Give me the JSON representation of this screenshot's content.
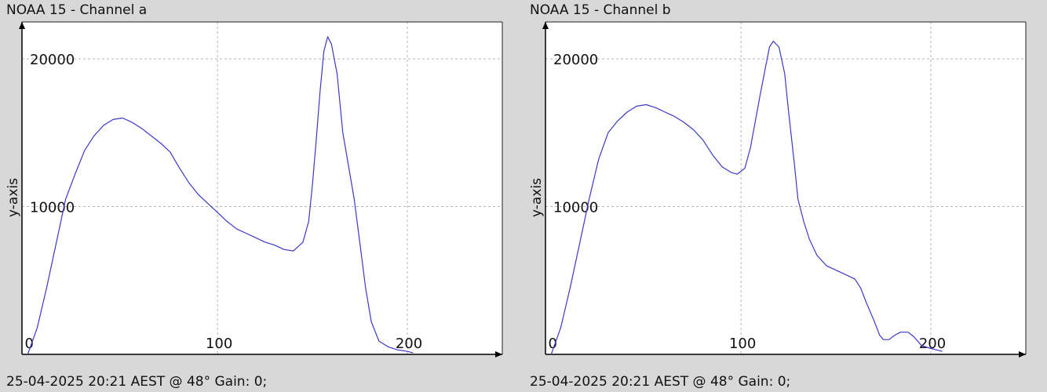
{
  "chart_data": [
    {
      "type": "line",
      "title": "NOAA 15 - Channel a",
      "footer": "25-04-2025 20:21 AEST @ 48° Gain: 0;",
      "xlabel": "",
      "ylabel": "y-axis",
      "xlim": [
        -3,
        250
      ],
      "ylim": [
        0,
        22500
      ],
      "x_ticks": [
        0,
        100,
        200
      ],
      "y_ticks": [
        10000,
        20000
      ],
      "grid": true,
      "series": [
        {
          "color": "#3a3ac8",
          "points": [
            [
              0,
              0
            ],
            [
              5,
              1800
            ],
            [
              10,
              4500
            ],
            [
              15,
              7500
            ],
            [
              20,
              10500
            ],
            [
              25,
              12200
            ],
            [
              30,
              13800
            ],
            [
              35,
              14800
            ],
            [
              40,
              15500
            ],
            [
              45,
              15900
            ],
            [
              50,
              16000
            ],
            [
              55,
              15700
            ],
            [
              60,
              15300
            ],
            [
              65,
              14800
            ],
            [
              70,
              14300
            ],
            [
              75,
              13700
            ],
            [
              80,
              12600
            ],
            [
              85,
              11600
            ],
            [
              90,
              10800
            ],
            [
              95,
              10200
            ],
            [
              100,
              9600
            ],
            [
              105,
              9000
            ],
            [
              110,
              8500
            ],
            [
              115,
              8200
            ],
            [
              120,
              7900
            ],
            [
              125,
              7600
            ],
            [
              130,
              7400
            ],
            [
              135,
              7100
            ],
            [
              140,
              7000
            ],
            [
              145,
              7600
            ],
            [
              148,
              9000
            ],
            [
              150,
              11500
            ],
            [
              152,
              14500
            ],
            [
              154,
              17800
            ],
            [
              156,
              20500
            ],
            [
              158,
              21500
            ],
            [
              160,
              21000
            ],
            [
              163,
              19000
            ],
            [
              166,
              15000
            ],
            [
              170,
              12000
            ],
            [
              172,
              10500
            ],
            [
              175,
              7500
            ],
            [
              178,
              4500
            ],
            [
              181,
              2200
            ],
            [
              185,
              900
            ],
            [
              190,
              500
            ],
            [
              195,
              300
            ],
            [
              200,
              200
            ],
            [
              203,
              100
            ]
          ]
        }
      ]
    },
    {
      "type": "line",
      "title": "NOAA 15 - Channel b",
      "footer": "25-04-2025 20:21 AEST @ 48° Gain: 0;",
      "xlabel": "",
      "ylabel": "y-axis",
      "xlim": [
        -3,
        250
      ],
      "ylim": [
        0,
        22500
      ],
      "x_ticks": [
        0,
        100,
        200
      ],
      "y_ticks": [
        10000,
        20000
      ],
      "grid": true,
      "series": [
        {
          "color": "#3a3ac8",
          "points": [
            [
              0,
              0
            ],
            [
              5,
              1800
            ],
            [
              10,
              4500
            ],
            [
              15,
              7500
            ],
            [
              20,
              10500
            ],
            [
              25,
              13200
            ],
            [
              30,
              15000
            ],
            [
              35,
              15800
            ],
            [
              40,
              16400
            ],
            [
              45,
              16800
            ],
            [
              50,
              16900
            ],
            [
              55,
              16700
            ],
            [
              60,
              16400
            ],
            [
              65,
              16100
            ],
            [
              70,
              15700
            ],
            [
              75,
              15200
            ],
            [
              80,
              14500
            ],
            [
              85,
              13500
            ],
            [
              90,
              12700
            ],
            [
              95,
              12300
            ],
            [
              98,
              12200
            ],
            [
              102,
              12600
            ],
            [
              105,
              14000
            ],
            [
              110,
              17500
            ],
            [
              113,
              19500
            ],
            [
              115,
              20800
            ],
            [
              117,
              21200
            ],
            [
              120,
              20800
            ],
            [
              123,
              19000
            ],
            [
              125,
              16500
            ],
            [
              128,
              13000
            ],
            [
              130,
              10500
            ],
            [
              133,
              9000
            ],
            [
              136,
              7800
            ],
            [
              140,
              6700
            ],
            [
              145,
              6000
            ],
            [
              150,
              5700
            ],
            [
              155,
              5400
            ],
            [
              160,
              5100
            ],
            [
              163,
              4500
            ],
            [
              166,
              3500
            ],
            [
              170,
              2300
            ],
            [
              173,
              1300
            ],
            [
              175,
              1000
            ],
            [
              178,
              1000
            ],
            [
              181,
              1300
            ],
            [
              184,
              1500
            ],
            [
              188,
              1500
            ],
            [
              191,
              1200
            ],
            [
              195,
              600
            ],
            [
              200,
              400
            ],
            [
              203,
              300
            ],
            [
              206,
              200
            ]
          ]
        }
      ]
    }
  ]
}
